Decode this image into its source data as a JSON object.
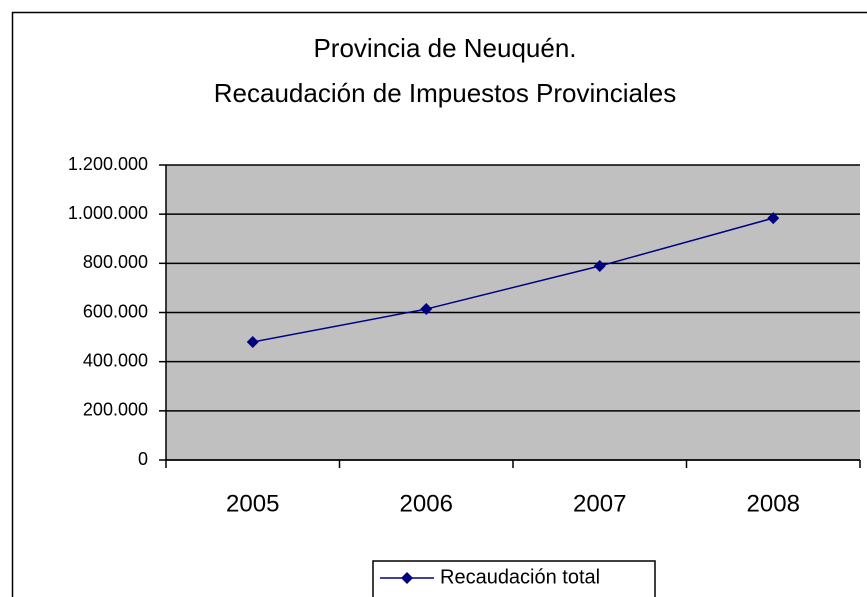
{
  "chart_data": {
    "type": "line",
    "title": [
      "Provincia de Neuquén.",
      "Recaudación de Impuestos Provinciales"
    ],
    "categories": [
      "2005",
      "2006",
      "2007",
      "2008"
    ],
    "series": [
      {
        "name": "Recaudación total",
        "color": "#000080",
        "values": [
          480000,
          614000,
          789000,
          984000
        ]
      }
    ],
    "ylim": [
      0,
      1200000
    ],
    "yticks": [
      0,
      {
        "value": 200000,
        "label": "200.000"
      },
      {
        "value": 400000,
        "label": "400.000"
      },
      {
        "value": 600000,
        "label": "600.000"
      },
      {
        "value": 800000,
        "label": "800.000"
      },
      {
        "value": 1000000,
        "label": "1.000.000"
      },
      {
        "value": 1200000,
        "label": "1.200.000"
      }
    ],
    "grid": true,
    "legend": "bottom",
    "plot_background": "#c0c0c0"
  }
}
